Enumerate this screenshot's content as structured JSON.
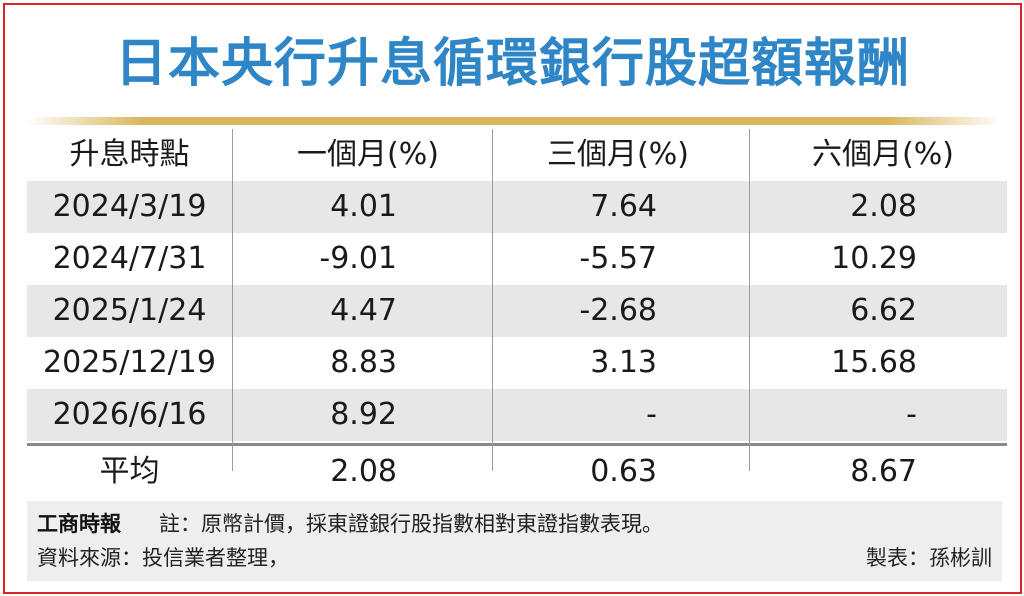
{
  "title": "日本央行升息循環銀行股超額報酬",
  "colors": {
    "title": "#2f86c6",
    "border": "#d9252a",
    "accent_line": "#d9b45a",
    "stripe": "#e7e7e7"
  },
  "chart_data": {
    "type": "table",
    "title": "日本央行升息循環銀行股超額報酬",
    "columns": [
      "升息時點",
      "一個月(%)",
      "三個月(%)",
      "六個月(%)"
    ],
    "rows": [
      [
        "2024/3/19",
        "4.01",
        "7.64",
        "2.08"
      ],
      [
        "2024/7/31",
        "-9.01",
        "-5.57",
        "10.29"
      ],
      [
        "2025/1/24",
        "4.47",
        "-2.68",
        "6.62"
      ],
      [
        "2025/12/19",
        "8.83",
        "3.13",
        "15.68"
      ],
      [
        "2026/6/16",
        "8.92",
        "-",
        "-"
      ]
    ],
    "summary_row": [
      "平均",
      "2.08",
      "0.63",
      "8.67"
    ]
  },
  "footer": {
    "logo": "工商時報",
    "note": "註：原幣計價，採東證銀行股指數相對東證指數表現。",
    "source": "資料來源：投信業者整理，",
    "credit": "製表：孫彬訓"
  }
}
